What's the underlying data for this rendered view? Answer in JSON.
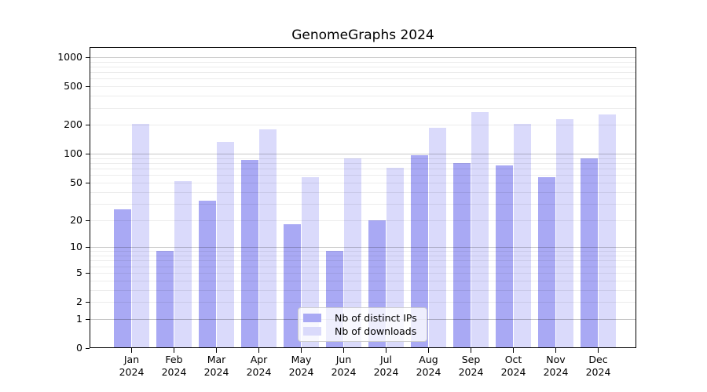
{
  "chart_data": {
    "type": "bar",
    "title": "GenomeGraphs 2024",
    "categories": [
      "Jan",
      "Feb",
      "Mar",
      "Apr",
      "May",
      "Jun",
      "Jul",
      "Aug",
      "Sep",
      "Oct",
      "Nov",
      "Dec"
    ],
    "x_tick_second_line": "2024",
    "series": [
      {
        "name": "Nb of distinct IPs",
        "color": "#a9a9f4",
        "values": [
          26,
          9,
          32,
          87,
          18,
          9,
          20,
          97,
          80,
          75,
          57,
          89
        ]
      },
      {
        "name": "Nb of downloads",
        "color": "#dadafb",
        "values": [
          205,
          52,
          132,
          178,
          57,
          90,
          72,
          186,
          272,
          205,
          231,
          257
        ]
      }
    ],
    "y_ticks": [
      0,
      1,
      2,
      5,
      10,
      20,
      50,
      100,
      200,
      500,
      1000
    ],
    "y_scale": "log1p",
    "ylim": [
      0,
      1300
    ],
    "grid": {
      "orientation": "horizontal",
      "major_at": [
        1,
        10,
        100,
        1000
      ],
      "major_color": "#c6c6c6",
      "minor_color": "#ececec"
    },
    "legend": {
      "position": "inside-bottom-center",
      "entries": [
        "Nb of distinct IPs",
        "Nb of downloads"
      ]
    },
    "colors": {
      "axis": "#000000",
      "background": "#ffffff",
      "bar_distinct_ips": "#a9a9f4",
      "bar_downloads": "#dadafb"
    }
  }
}
